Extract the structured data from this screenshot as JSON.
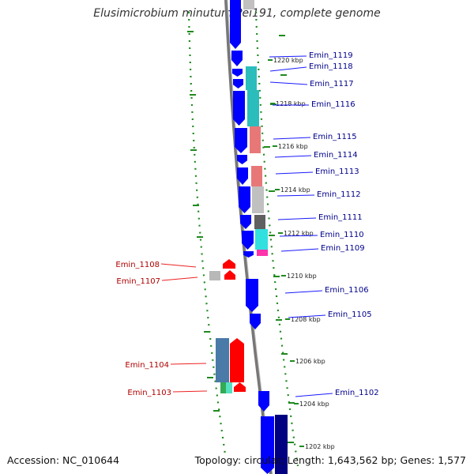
{
  "title": "Elusimicrobium minutum Pei191, complete genome",
  "accession": "Accession: NC_010644",
  "topology": "Topology: circular; Length: 1,643,562 bp; Genes: 1,577",
  "colors": {
    "forward_cds": "#0000ff",
    "reverse_cds": "#ff0000",
    "backbone": "#808080",
    "gc_dots": "#1f8a1f",
    "forward_label": "#00008b",
    "reverse_label": "#b00000"
  },
  "ticks": [
    {
      "label": "1220 kbp"
    },
    {
      "label": "1218 kbp"
    },
    {
      "label": "1216 kbp"
    },
    {
      "label": "1214 kbp"
    },
    {
      "label": "1212 kbp"
    },
    {
      "label": "1210 kbp"
    },
    {
      "label": "1208 kbp"
    },
    {
      "label": "1206 kbp"
    },
    {
      "label": "1204 kbp"
    },
    {
      "label": "1202 kbp"
    }
  ],
  "forward_genes": [
    {
      "label": "Emin_1119"
    },
    {
      "label": "Emin_1118"
    },
    {
      "label": "Emin_1117"
    },
    {
      "label": "Emin_1116"
    },
    {
      "label": "Emin_1115"
    },
    {
      "label": "Emin_1114"
    },
    {
      "label": "Emin_1113"
    },
    {
      "label": "Emin_1112"
    },
    {
      "label": "Emin_1111"
    },
    {
      "label": "Emin_1110"
    },
    {
      "label": "Emin_1109"
    },
    {
      "label": "Emin_1106"
    },
    {
      "label": "Emin_1105"
    },
    {
      "label": "Emin_1102"
    }
  ],
  "reverse_genes": [
    {
      "label": "Emin_1108"
    },
    {
      "label": "Emin_1107"
    },
    {
      "label": "Emin_1104"
    },
    {
      "label": "Emin_1103"
    }
  ]
}
